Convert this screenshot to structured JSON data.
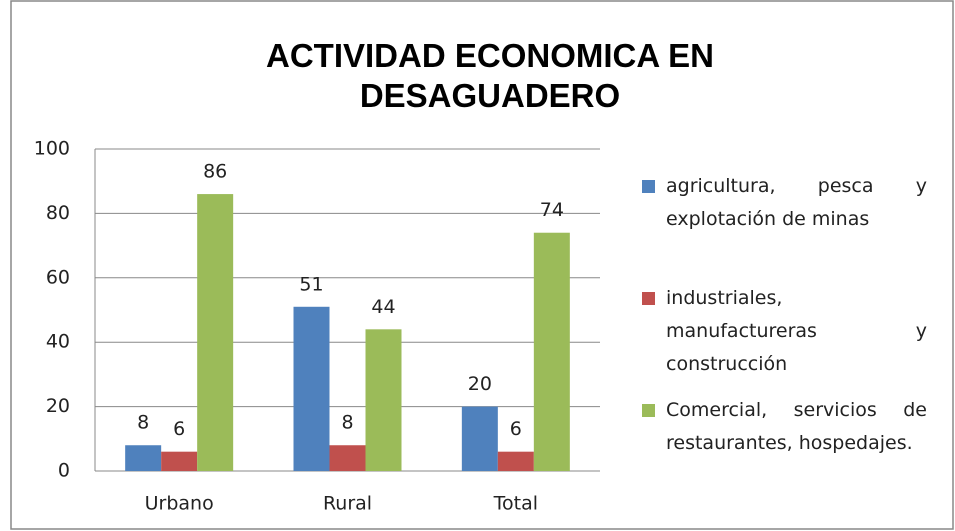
{
  "chart_data": {
    "type": "bar",
    "title": "ACTIVIDAD ECONOMICA EN DESAGUADERO",
    "categories": [
      "Urbano",
      "Rural",
      "Total"
    ],
    "series": [
      {
        "name": "agricultura, pesca y explotación de minas",
        "color": "#4f81bd",
        "values": [
          8,
          51,
          20
        ]
      },
      {
        "name": "industriales, manufactureras y construcción",
        "color": "#c0504d",
        "values": [
          6,
          8,
          6
        ]
      },
      {
        "name": "Comercial, servicios de restaurantes, hospedajes.",
        "color": "#9bbb59",
        "values": [
          86,
          44,
          74
        ]
      }
    ],
    "ylim": [
      0,
      100
    ],
    "yticks": [
      0,
      20,
      40,
      60,
      80,
      100
    ],
    "grid": true,
    "legend": "right"
  }
}
